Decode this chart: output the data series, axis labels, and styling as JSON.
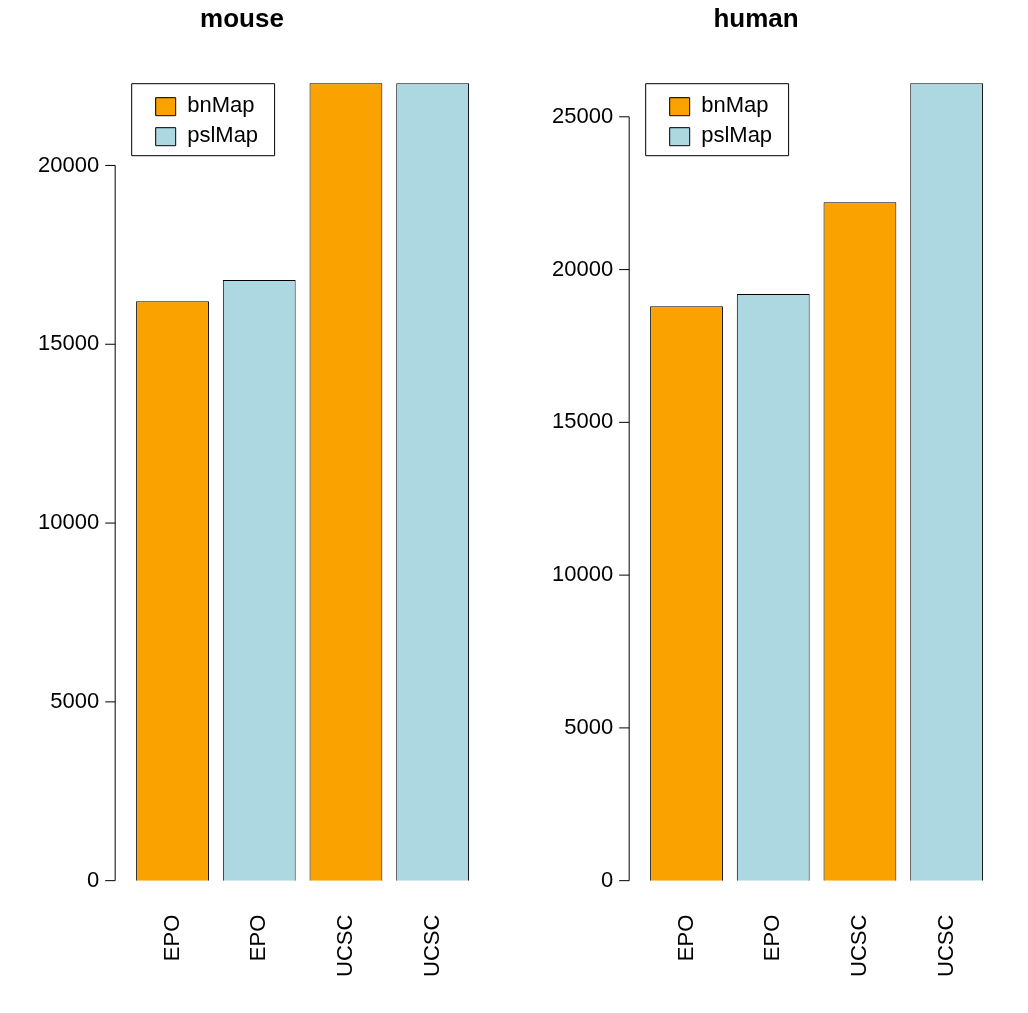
{
  "chart_data": [
    {
      "type": "bar",
      "title": "mouse",
      "categories": [
        "EPO",
        "EPO",
        "UCSC",
        "UCSC"
      ],
      "series": [
        {
          "name": "bnMap",
          "color": "#f9a200",
          "values": [
            16200,
            null,
            22300,
            null
          ]
        },
        {
          "name": "pslMap",
          "color": "#add8e2",
          "values": [
            null,
            16800,
            null,
            22300
          ]
        }
      ],
      "ylim": [
        0,
        22300
      ],
      "yticks": [
        0,
        5000,
        10000,
        15000,
        20000
      ],
      "grid": false,
      "legend": "top left"
    },
    {
      "type": "bar",
      "title": "human",
      "categories": [
        "EPO",
        "EPO",
        "UCSC",
        "UCSC"
      ],
      "series": [
        {
          "name": "bnMap",
          "color": "#f9a200",
          "values": [
            18800,
            null,
            22200,
            null
          ]
        },
        {
          "name": "pslMap",
          "color": "#add8e2",
          "values": [
            null,
            19200,
            null,
            26100
          ]
        }
      ],
      "ylim": [
        0,
        26100
      ],
      "yticks": [
        0,
        5000,
        10000,
        15000,
        20000,
        25000
      ],
      "grid": false,
      "legend": "top left"
    }
  ]
}
